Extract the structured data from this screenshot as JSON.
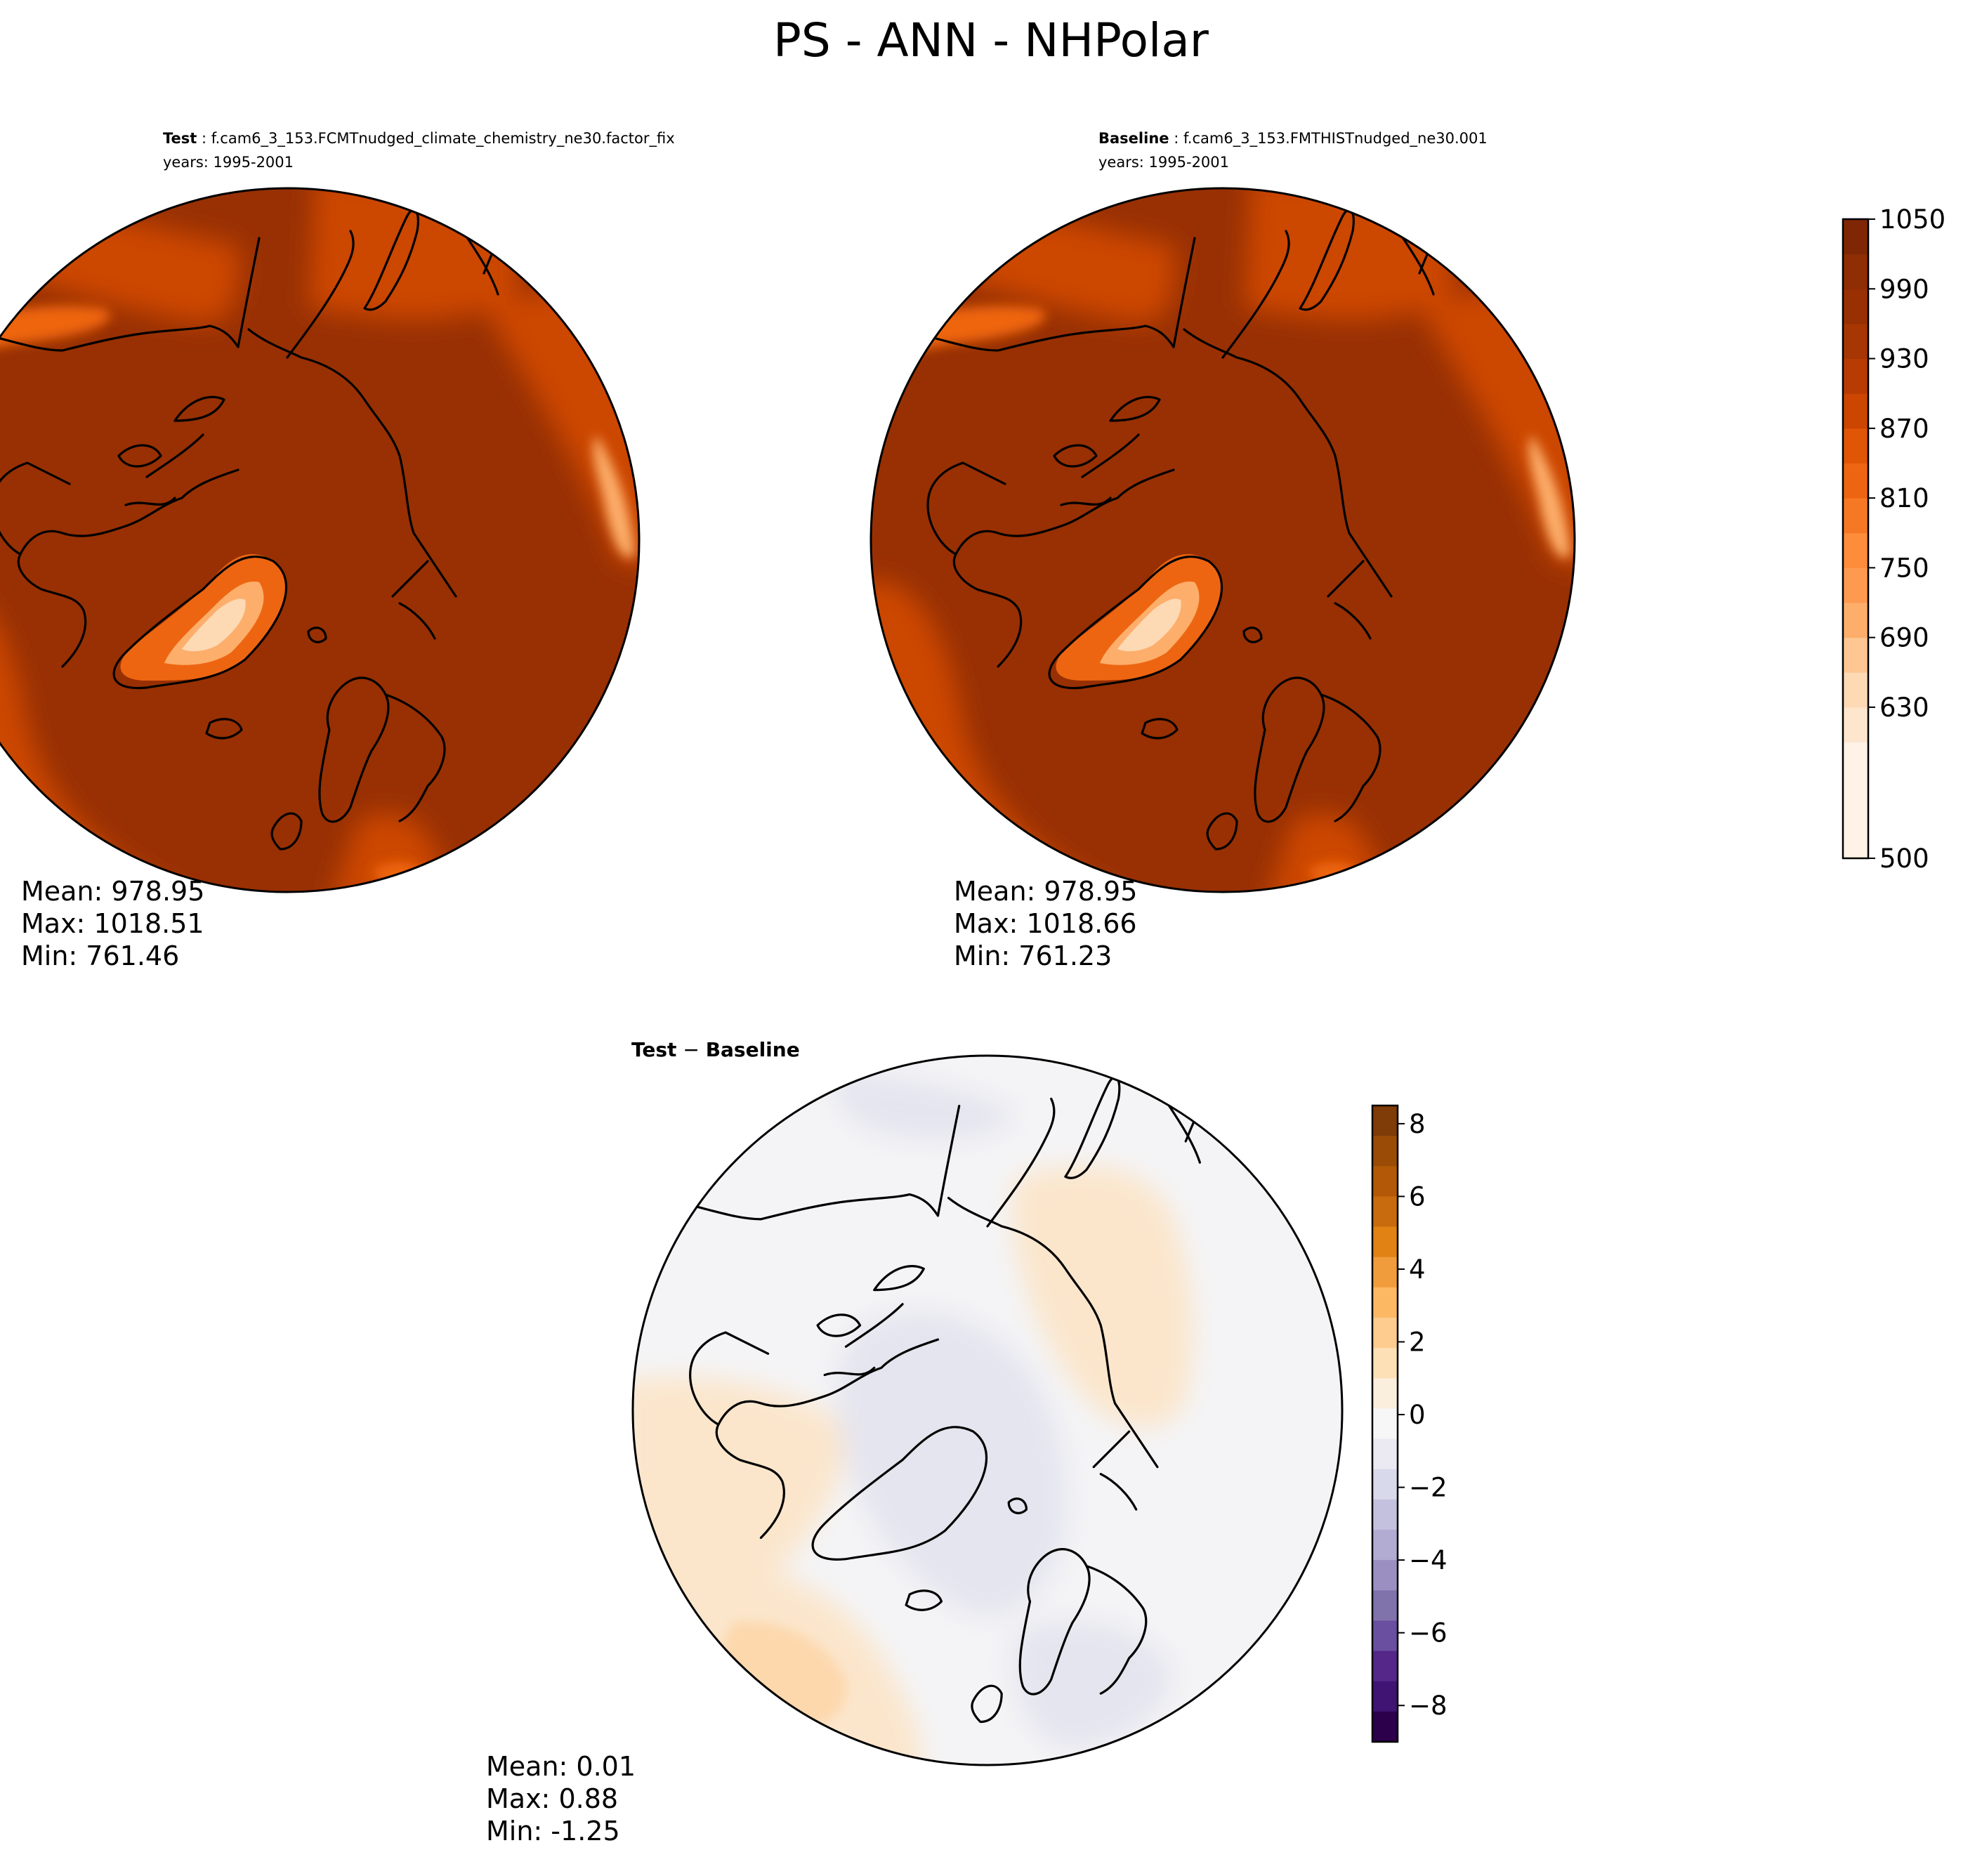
{
  "title": "PS - ANN - NHPolar",
  "panels": {
    "test": {
      "label": "Test",
      "case": " : f.cam6_3_153.FCMTnudged_climate_chemistry_ne30.factor_fix",
      "years": "years: 1995-2001",
      "mean": "Mean: 978.95",
      "max": "Max: 1018.51",
      "min": "Min: 761.46"
    },
    "baseline": {
      "label": "Baseline",
      "case": " : f.cam6_3_153.FMTHISTnudged_ne30.001",
      "years": "years: 1995-2001",
      "mean": "Mean: 978.95",
      "max": "Max: 1018.66",
      "min": "Min: 761.23"
    },
    "diff": {
      "label_a": "Test",
      "label_sep": " − ",
      "label_b": "Baseline",
      "mean": "Mean:  0.01",
      "max": "Max:  0.88",
      "min": "Min: -1.25"
    }
  },
  "colorbar_main": {
    "colormap": "Oranges",
    "min": 500,
    "max": 1050,
    "ticks": [
      "1050",
      "990",
      "930",
      "870",
      "810",
      "750",
      "690",
      "630",
      "500"
    ],
    "tick_values": [
      1050,
      990,
      930,
      870,
      810,
      750,
      690,
      630,
      500
    ],
    "colors": [
      "#fff2e6",
      "#fee6ce",
      "#fdd9b4",
      "#fdc692",
      "#fdae6b",
      "#fd9a50",
      "#fd8c3b",
      "#f67824",
      "#ee6511",
      "#e05506",
      "#cc4602",
      "#b73b02",
      "#a63603",
      "#983003",
      "#8f2d04",
      "#7f2704"
    ]
  },
  "colorbar_diff": {
    "colormap": "PuOr_r",
    "min": -9,
    "max": 8.5,
    "ticks": [
      "8",
      "6",
      "4",
      "2",
      "0",
      "−2",
      "−4",
      "−6",
      "−8"
    ],
    "tick_values": [
      8,
      6,
      4,
      2,
      0,
      -2,
      -4,
      -6,
      -8
    ],
    "colors_top_to_bottom": [
      "#7f3b08",
      "#9a4b06",
      "#b35806",
      "#c86b0e",
      "#e08214",
      "#f09c3c",
      "#fdb863",
      "#fdcc8e",
      "#fee0b6",
      "#faeedc",
      "#f7f7f7",
      "#ebe9f2",
      "#d8daeb",
      "#c3c1dd",
      "#b2abd2",
      "#9b8fc2",
      "#8073ac",
      "#6a4ea0",
      "#542788",
      "#3f1473",
      "#2d004b"
    ]
  },
  "map_colors": {
    "ocean_high": "#983003",
    "land_mid": "#cc4602",
    "land_low": "#ee6511",
    "ice_low": "#fdae6b",
    "ice_peak": "#fdd9b4",
    "coast": "#000000",
    "diff_neutral": "#f4f4f6",
    "diff_pos": "#fbe6cc",
    "diff_pos_strong": "#fdd8ad",
    "diff_neg": "#e5e5ef"
  }
}
